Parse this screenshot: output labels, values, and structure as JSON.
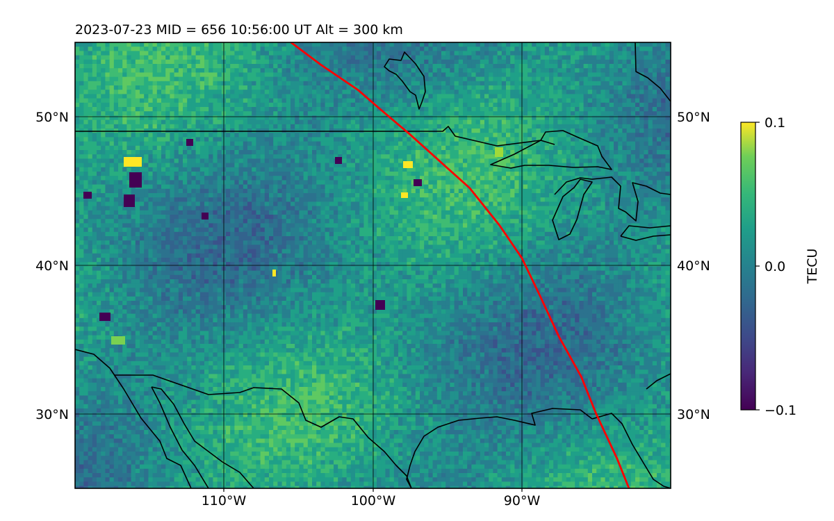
{
  "title": "2023-07-23  MID = 656    10:56:00  UT  Alt = 300 km",
  "map": {
    "lon_range": [
      -120,
      -80
    ],
    "lat_range": [
      25,
      55
    ],
    "grid": true,
    "lat_ticks": [
      "50°N",
      "40°N",
      "30°N"
    ],
    "lat_tick_values": [
      50,
      40,
      30
    ],
    "lon_ticks": [
      "110°W",
      "100°W",
      "90°W"
    ],
    "lon_tick_values": [
      -110,
      -100,
      -90
    ],
    "terminator_color": "#ff0000",
    "terminator_path": [
      [
        -105.5,
        55
      ],
      [
        -103.5,
        53.5
      ],
      [
        -101,
        51.8
      ],
      [
        -99.5,
        50.5
      ],
      [
        -97.5,
        48.8
      ],
      [
        -95.5,
        47
      ],
      [
        -93.5,
        45.2
      ],
      [
        -91.5,
        42.7
      ],
      [
        -90,
        40.5
      ],
      [
        -88.8,
        38
      ],
      [
        -87.5,
        35.2
      ],
      [
        -86,
        32.5
      ],
      [
        -85,
        30
      ],
      [
        -83.6,
        27
      ],
      [
        -82.8,
        25
      ]
    ]
  },
  "colorbar": {
    "label": "TECU",
    "colormap": "viridis",
    "min": -0.1,
    "max": 0.1,
    "ticks": [
      "0.1",
      "0.0",
      "−0.1"
    ],
    "tick_values": [
      0.1,
      0.0,
      -0.1
    ]
  }
}
